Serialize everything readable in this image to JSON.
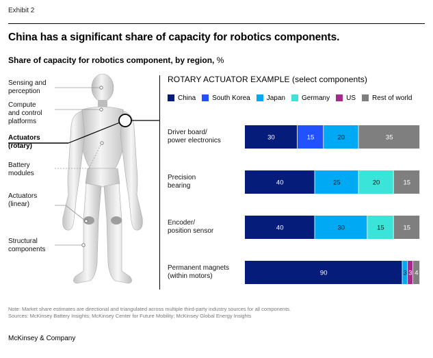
{
  "header": {
    "exhibit": "Exhibit 2",
    "title": "China has a significant share of capacity for robotics components.",
    "subtitle_bold": "Share of capacity for robotics component, by region,",
    "subtitle_unit": " %"
  },
  "robot_labels": [
    "Sensing and\nperception",
    "Compute\nand control\nplatforms",
    "Actuators\n(rotary)",
    "Battery\nmodules",
    "Actuators\n(linear)",
    "Structural\ncomponents"
  ],
  "chart_data": {
    "type": "bar",
    "orientation": "horizontal",
    "stacked": true,
    "normalized_to": 100,
    "title": "ROTARY ACTUATOR EXAMPLE (select components)",
    "categories": [
      "Driver board/\npower electronics",
      "Precision\nbearing",
      "Encoder/\nposition sensor",
      "Permanent magnets\n(within motors)"
    ],
    "series": [
      {
        "name": "China",
        "color": "#051C7B",
        "values": [
          30,
          40,
          40,
          90
        ]
      },
      {
        "name": "South Korea",
        "color": "#2251FF",
        "values": [
          15,
          null,
          null,
          null
        ]
      },
      {
        "name": "Japan",
        "color": "#00A9F4",
        "values": [
          20,
          25,
          30,
          3
        ]
      },
      {
        "name": "Germany",
        "color": "#3BE4D8",
        "values": [
          null,
          20,
          15,
          null
        ]
      },
      {
        "name": "US",
        "color": "#A52A8A",
        "values": [
          null,
          null,
          null,
          3
        ]
      },
      {
        "name": "Rest of world",
        "color": "#7F7F7F",
        "values": [
          35,
          15,
          15,
          4
        ]
      }
    ],
    "legend_position": "top",
    "grid": false
  },
  "footer": {
    "note": "Note: Market share estimates are directional and triangulated across multiple third-party industry sources for all components.",
    "sources": "Sources: McKinsey Battery Insights; McKinsey Center for Future Mobility; McKinsey Global Energy Insights",
    "brand": "McKinsey & Company"
  }
}
